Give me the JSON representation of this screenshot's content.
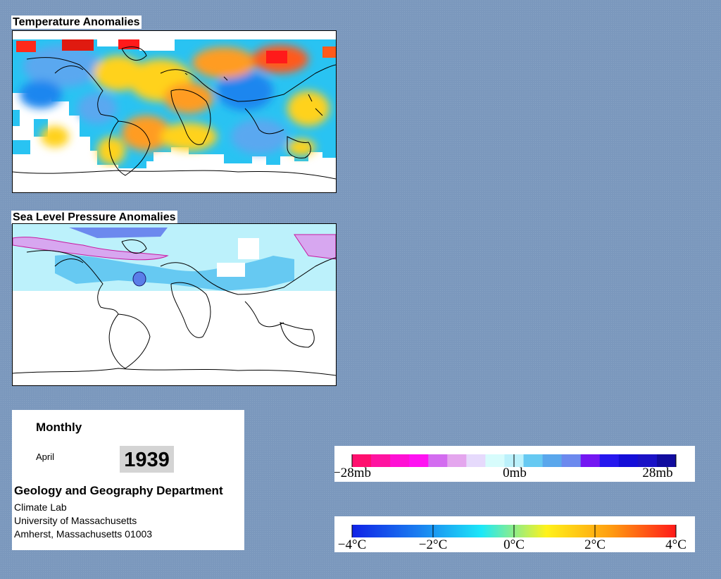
{
  "panels": {
    "temperature": {
      "title": "Temperature Anomalies"
    },
    "pressure": {
      "title": "Sea Level Pressure Anomalies"
    }
  },
  "info": {
    "period": "Monthly",
    "month": "April",
    "year": "1939",
    "department": "Geology and Geography Department",
    "lab": "Climate Lab",
    "university": "University of Massachusetts",
    "address": "Amherst, Massachusetts 01003"
  },
  "legends": {
    "pressure": {
      "labels": [
        "−28mb",
        "0mb",
        "28mb"
      ],
      "colors": [
        "#ff0f6e",
        "#ff13a0",
        "#ff10d4",
        "#ff12f2",
        "#d36cf0",
        "#e4a6ee",
        "#e6dafc",
        "#d7fcfc",
        "#bcf1fb",
        "#66c9f2",
        "#5aa7ec",
        "#6c89ee",
        "#7417f2",
        "#2617ee",
        "#140ed8",
        "#1a12c6",
        "#110c9e"
      ]
    },
    "temperature": {
      "labels": [
        "−4°C",
        "−2°C",
        "0°C",
        "2°C",
        "4°C"
      ],
      "gradient": [
        "#1022e6",
        "#1a7cf0",
        "#1ce8f8",
        "#fff21a",
        "#ff9c10",
        "#ff1a1a"
      ]
    }
  }
}
